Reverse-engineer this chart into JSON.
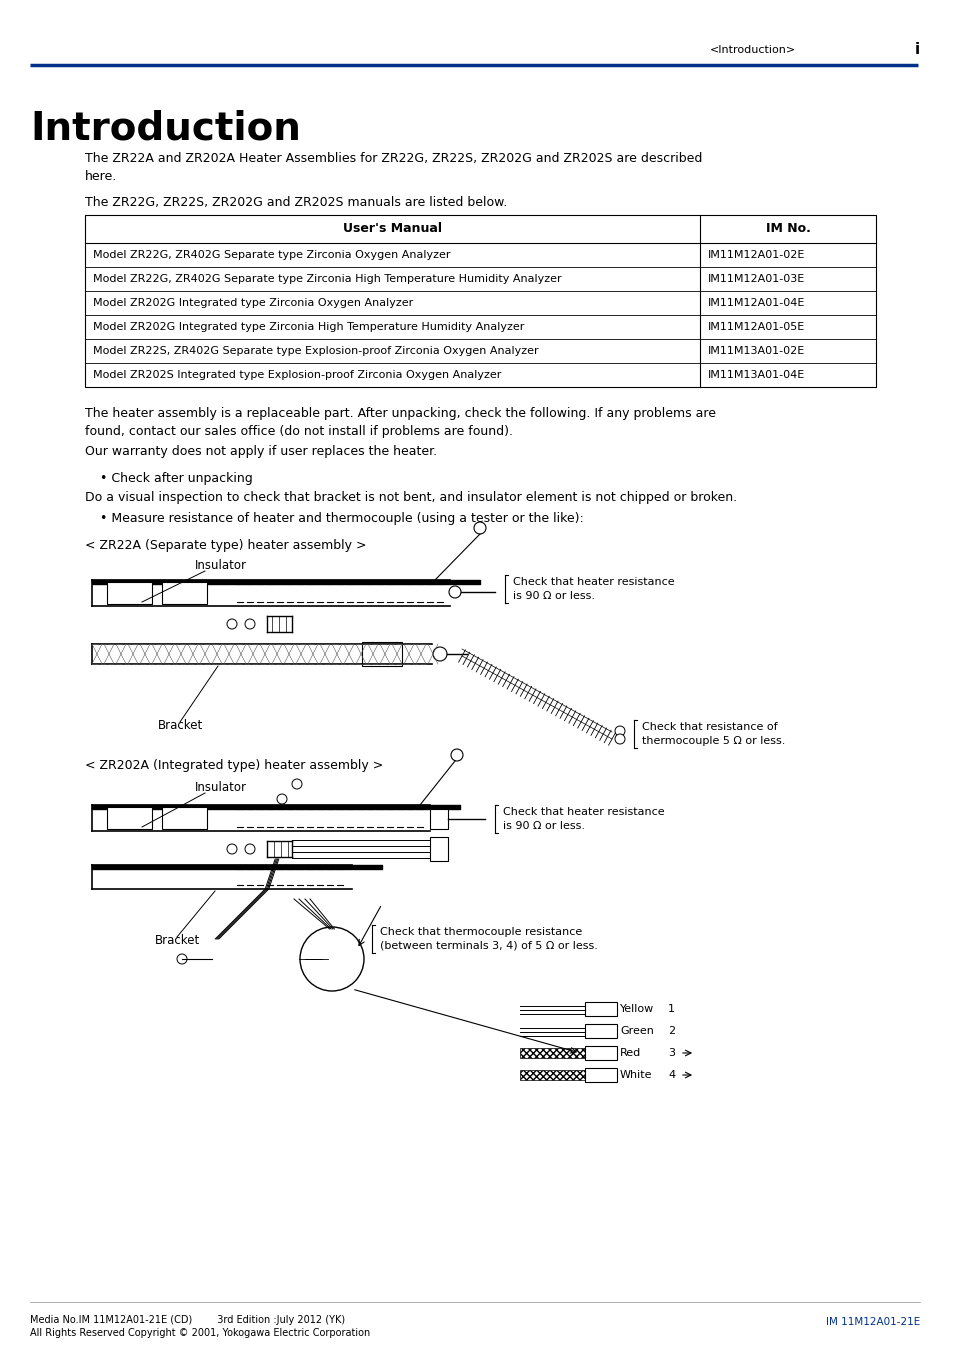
{
  "page_title": "Introduction",
  "header_text": "<Introduction>",
  "header_page": "i",
  "para1": "The ZR22A and ZR202A Heater Assemblies for ZR22G, ZR22S, ZR202G and ZR202S are described\nhere.",
  "para2": "The ZR22G, ZR22S, ZR202G and ZR202S manuals are listed below.",
  "table_header": [
    "User's Manual",
    "IM No."
  ],
  "table_rows": [
    [
      "Model ZR22G, ZR402G Separate type Zirconia Oxygen Analyzer",
      "IM11M12A01-02E"
    ],
    [
      "Model ZR22G, ZR402G Separate type Zirconia High Temperature Humidity Analyzer",
      "IM11M12A01-03E"
    ],
    [
      "Model ZR202G Integrated type Zirconia Oxygen Analyzer",
      "IM11M12A01-04E"
    ],
    [
      "Model ZR202G Integrated type Zirconia High Temperature Humidity Analyzer",
      "IM11M12A01-05E"
    ],
    [
      "Model ZR22S, ZR402G Separate type Explosion-proof Zirconia Oxygen Analyzer",
      "IM11M13A01-02E"
    ],
    [
      "Model ZR202S Integrated type Explosion-proof Zirconia Oxygen Analyzer",
      "IM11M13A01-04E"
    ]
  ],
  "para3": "The heater assembly is a replaceable part. After unpacking, check the following. If any problems are\nfound, contact our sales office (do not install if problems are found).",
  "para4": "Our warranty does not apply if user replaces the heater.",
  "bullet1": "• Check after unpacking",
  "para5": "Do a visual inspection to check that bracket is not bent, and insulator element is not chipped or broken.",
  "bullet2": "• Measure resistance of heater and thermocouple (using a tester or the like):",
  "diagram1_title": "< ZR22A (Separate type) heater assembly >",
  "diagram1_insulator": "Insulator",
  "diagram1_bracket": "Bracket",
  "diagram1_check1": "Check that heater resistance\nis 90 Ω or less.",
  "diagram1_check2": "Check that resistance of\nthermocouple 5 Ω or less.",
  "diagram2_title": "< ZR202A (Integrated type) heater assembly >",
  "diagram2_insulator": "Insulator",
  "diagram2_bracket": "Bracket",
  "diagram2_check1": "Check that heater resistance\nis 90 Ω or less.",
  "diagram2_check2": "Check that thermocouple resistance\n(between terminals 3, 4) of 5 Ω or less.",
  "wire_colors": [
    "Yellow",
    "Green",
    "Red",
    "White"
  ],
  "wire_numbers": [
    "1",
    "2",
    "3",
    "4"
  ],
  "footer_left1": "Media No.IM 11M12A01-21E (CD)        3rd Edition :July 2012 (YK)",
  "footer_left2": "All Rights Reserved Copyright © 2001, Yokogawa Electric Corporation",
  "footer_right": "IM 11M12A01-21E",
  "blue_color": "#003087",
  "bg_color": "#ffffff",
  "text_color": "#000000"
}
